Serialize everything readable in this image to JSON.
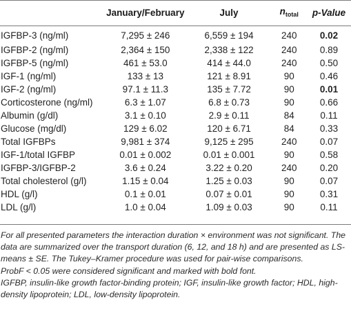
{
  "table": {
    "headers": {
      "param": "",
      "jan_feb": "January/February",
      "july": "July",
      "n_main": "n",
      "n_sub": "total",
      "p_value": "p-Value"
    },
    "rows": [
      {
        "param": "IGFBP-3 (ng/ml)",
        "jan_feb": "7,295 ± 246",
        "july": "6,559 ± 194",
        "n": "240",
        "p": "0.02",
        "p_bold": true
      },
      {
        "param": "IGFBP-2 (ng/ml)",
        "jan_feb": "2,364 ± 150",
        "july": "2,338 ± 122",
        "n": "240",
        "p": "0.89",
        "p_bold": false
      },
      {
        "param": "IGFBP-5 (ng/ml)",
        "jan_feb": "461 ± 53.0",
        "july": "414 ± 44.0",
        "n": "240",
        "p": "0.50",
        "p_bold": false
      },
      {
        "param": "IGF-1 (ng/ml)",
        "jan_feb": "133 ± 13",
        "july": "121 ± 8.91",
        "n": "90",
        "p": "0.46",
        "p_bold": false
      },
      {
        "param": "IGF-2 (ng/ml)",
        "jan_feb": "97.1 ± 11.3",
        "july": "135 ± 7.72",
        "n": "90",
        "p": "0.01",
        "p_bold": true
      },
      {
        "param": "Corticosterone (ng/ml)",
        "jan_feb": "6.3 ± 1.07",
        "july": "6.8 ± 0.73",
        "n": "90",
        "p": "0.66",
        "p_bold": false
      },
      {
        "param": "Albumin (g/dl)",
        "jan_feb": "3.1 ± 0.10",
        "july": "2.9 ± 0.11",
        "n": "84",
        "p": "0.11",
        "p_bold": false
      },
      {
        "param": "Glucose (mg/dl)",
        "jan_feb": "129 ± 6.02",
        "july": "120 ± 6.71",
        "n": "84",
        "p": "0.33",
        "p_bold": false
      },
      {
        "param": "Total IGFBPs",
        "jan_feb": "9,981 ± 374",
        "july": "9,125 ± 295",
        "n": "240",
        "p": "0.07",
        "p_bold": false
      },
      {
        "param": "IGF-1/total IGFBP",
        "jan_feb": "0.01 ± 0.002",
        "july": "0.01 ± 0.001",
        "n": "90",
        "p": "0.58",
        "p_bold": false
      },
      {
        "param": "IGFBP-3/IGFBP-2",
        "jan_feb": "3.6 ± 0.24",
        "july": "3.22 ± 0.20",
        "n": "240",
        "p": "0.20",
        "p_bold": false
      },
      {
        "param": "Total cholesterol (g/l)",
        "jan_feb": "1.15 ± 0.04",
        "july": "1.25 ± 0.03",
        "n": "90",
        "p": "0.07",
        "p_bold": false
      },
      {
        "param": "HDL (g/l)",
        "jan_feb": "0.1 ± 0.01",
        "july": "0.07 ± 0.01",
        "n": "90",
        "p": "0.31",
        "p_bold": false
      },
      {
        "param": "LDL (g/l)",
        "jan_feb": "1.0 ± 0.04",
        "july": "1.09 ± 0.03",
        "n": "90",
        "p": "0.11",
        "p_bold": false
      }
    ]
  },
  "footnotes": [
    "For all presented parameters the interaction duration × environment was not significant. The data are summarized over the transport duration (6, 12, and 18 h) and are presented as LS-means ± SE. The Tukey–Kramer procedure was used for pair-wise comparisons.",
    "ProbF < 0.05 were considered significant and marked with bold font.",
    "IGFBP, insulin-like growth factor-binding protein; IGF, insulin-like growth factor; HDL, high-density lipoprotein; LDL, low-density lipoprotein."
  ]
}
